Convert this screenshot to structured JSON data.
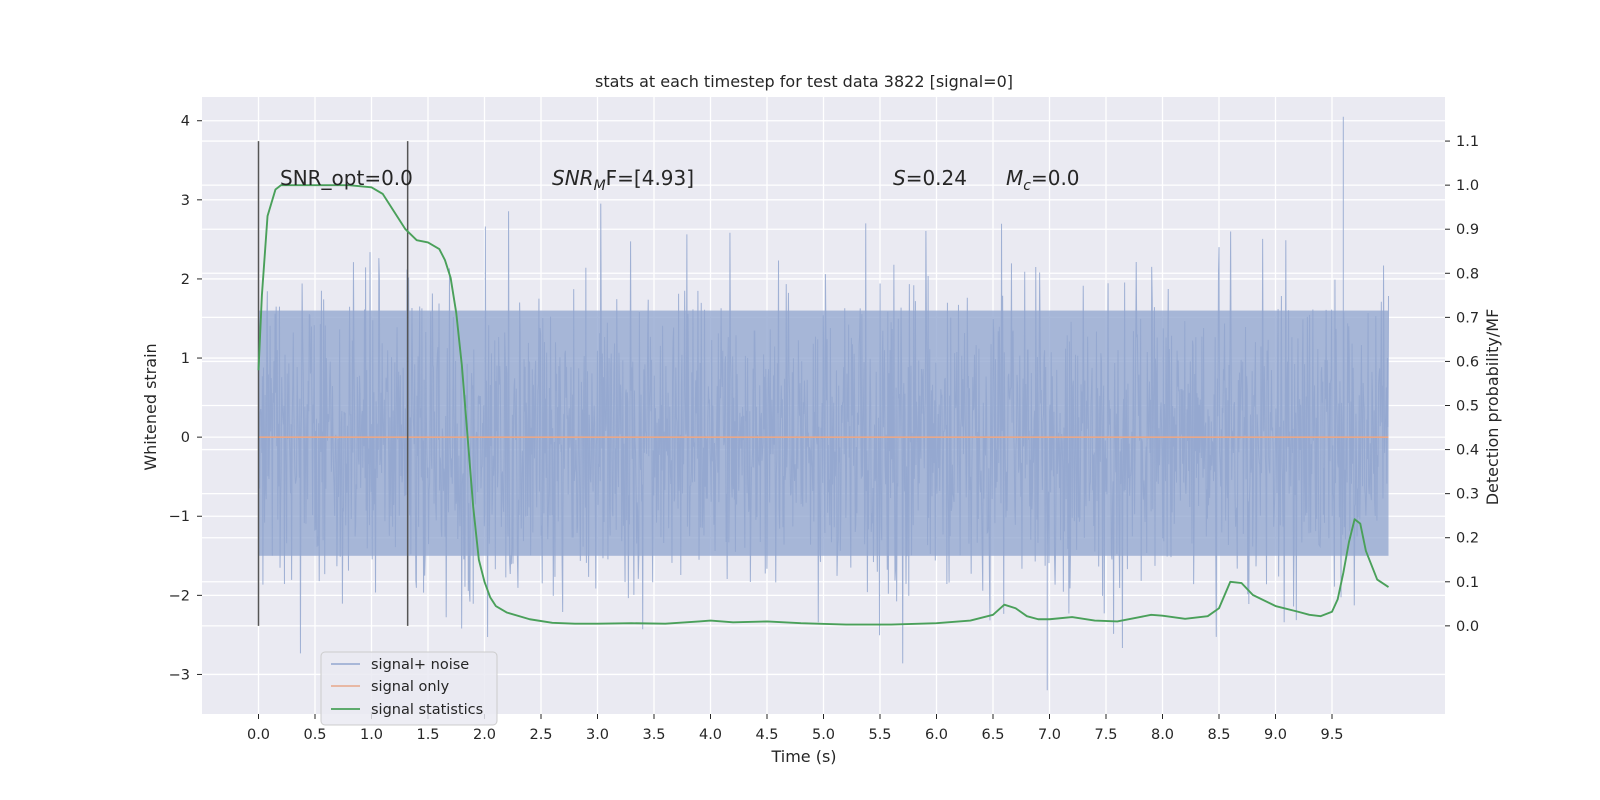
{
  "chart_data": {
    "type": "line",
    "title": "stats at each timestep for test data 3822 [signal=0]",
    "xlabel": "Time (s)",
    "ylabel_left": "Whitened strain",
    "ylabel_right": "Detection probability/MF",
    "xlim": [
      -0.5,
      10.5
    ],
    "ylim_left": [
      -3.5,
      4.3
    ],
    "ylim_right": [
      -0.2,
      1.2
    ],
    "x_ticks": [
      "0.0",
      "0.5",
      "1.0",
      "1.5",
      "2.0",
      "2.5",
      "3.0",
      "3.5",
      "4.0",
      "4.5",
      "5.0",
      "5.5",
      "6.0",
      "6.5",
      "7.0",
      "7.5",
      "8.0",
      "8.5",
      "9.0",
      "9.5"
    ],
    "y_ticks_left": [
      "4",
      "3",
      "2",
      "1",
      "0",
      "−1",
      "−2",
      "−3"
    ],
    "y_ticks_right": [
      "1.1",
      "1.0",
      "0.9",
      "0.8",
      "0.7",
      "0.6",
      "0.5",
      "0.4",
      "0.3",
      "0.2",
      "0.1",
      "0.0"
    ],
    "grid": true,
    "legend_position": "lower-left",
    "annotations": {
      "snr_opt": "SNR_opt=0.0",
      "snr_mf_symbol": "SNR",
      "snr_mf_sub": "M",
      "snr_mf_rest": "F=[4.93]",
      "s_symbol": "S",
      "s_rest": "=0.24",
      "mc_symbol": "M",
      "mc_sub": "c",
      "mc_rest": "=0.0"
    },
    "markers_x": [
      0.0,
      1.32
    ],
    "noise_stats": {
      "x_range": [
        0.0,
        10.0
      ],
      "core_range": [
        -1.5,
        1.6
      ],
      "peak_max": 4.05,
      "peak_min": -3.2
    },
    "series": [
      {
        "name": "signal+ noise",
        "color": "#92a6cf",
        "axis": "left",
        "kind": "noise"
      },
      {
        "name": "signal only",
        "color": "#e8a88a",
        "axis": "left",
        "x": [
          0.0,
          10.0
        ],
        "y": [
          0.0,
          0.0
        ]
      },
      {
        "name": "signal statistics",
        "color": "#4aa05a",
        "axis": "right",
        "x": [
          0.0,
          0.03,
          0.08,
          0.15,
          0.2,
          0.3,
          0.5,
          0.8,
          1.0,
          1.1,
          1.2,
          1.3,
          1.4,
          1.5,
          1.6,
          1.65,
          1.7,
          1.75,
          1.8,
          1.85,
          1.9,
          1.95,
          2.0,
          2.05,
          2.1,
          2.2,
          2.4,
          2.6,
          2.8,
          3.0,
          3.3,
          3.6,
          3.9,
          4.0,
          4.2,
          4.5,
          4.8,
          5.2,
          5.6,
          6.0,
          6.3,
          6.5,
          6.6,
          6.7,
          6.8,
          6.9,
          7.0,
          7.2,
          7.4,
          7.6,
          7.8,
          7.9,
          8.0,
          8.2,
          8.4,
          8.5,
          8.55,
          8.6,
          8.7,
          8.8,
          9.0,
          9.2,
          9.3,
          9.4,
          9.5,
          9.55,
          9.6,
          9.65,
          9.7,
          9.75,
          9.8,
          9.9,
          10.0
        ],
        "y": [
          0.58,
          0.75,
          0.93,
          0.99,
          1.0,
          1.0,
          1.0,
          1.0,
          0.995,
          0.98,
          0.94,
          0.9,
          0.875,
          0.87,
          0.855,
          0.83,
          0.79,
          0.71,
          0.59,
          0.43,
          0.27,
          0.15,
          0.1,
          0.065,
          0.045,
          0.03,
          0.015,
          0.007,
          0.005,
          0.005,
          0.006,
          0.005,
          0.01,
          0.012,
          0.008,
          0.01,
          0.006,
          0.003,
          0.003,
          0.006,
          0.012,
          0.025,
          0.048,
          0.04,
          0.022,
          0.015,
          0.015,
          0.02,
          0.012,
          0.01,
          0.02,
          0.025,
          0.023,
          0.016,
          0.022,
          0.04,
          0.07,
          0.1,
          0.097,
          0.07,
          0.045,
          0.032,
          0.025,
          0.022,
          0.032,
          0.06,
          0.12,
          0.19,
          0.242,
          0.232,
          0.17,
          0.105,
          0.088
        ]
      }
    ]
  }
}
